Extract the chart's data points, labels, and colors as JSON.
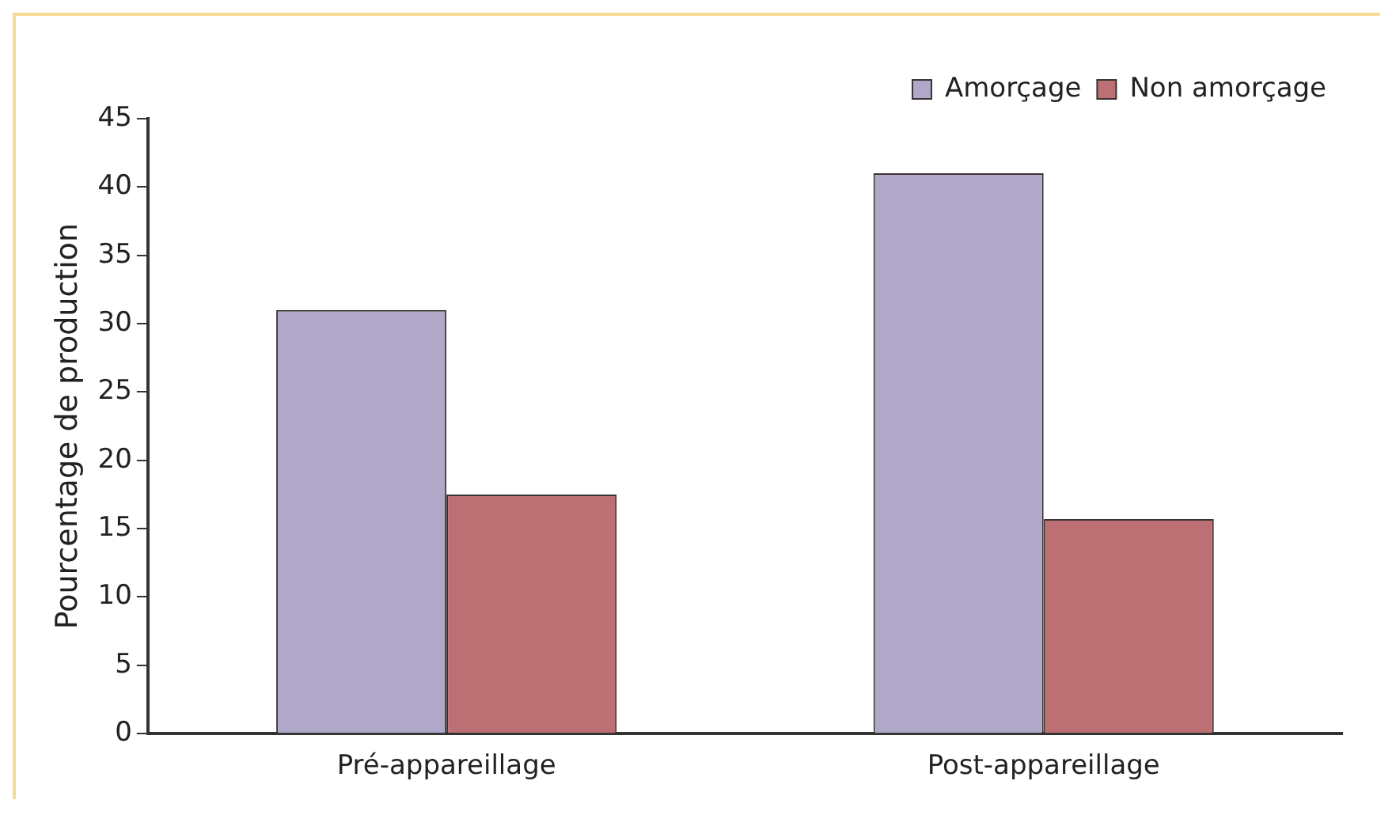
{
  "chart_data": {
    "type": "bar",
    "ylabel": "Pourcentage de production",
    "categories": [
      "Pré-appareillage",
      "Post-appareillage"
    ],
    "series": [
      {
        "name": "Amorçage",
        "color": "#b0a8c8",
        "values": [
          31,
          41
        ]
      },
      {
        "name": "Non amorçage",
        "color": "#bc7073",
        "values": [
          17.5,
          15.7
        ]
      }
    ],
    "ylim": [
      0,
      45
    ],
    "yticks": [
      0,
      5,
      10,
      15,
      20,
      25,
      30,
      35,
      40,
      45
    ],
    "grid": false,
    "legend": "top right"
  }
}
